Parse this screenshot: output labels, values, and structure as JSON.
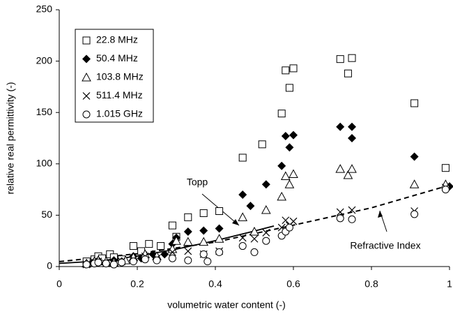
{
  "chart_data": {
    "type": "scatter",
    "xlabel": "volumetric water content (-)",
    "ylabel": "relative real permittivity (-)",
    "xlim": [
      0,
      1
    ],
    "ylim": [
      0,
      250
    ],
    "xticks": [
      0,
      0.2,
      0.4,
      0.6,
      0.8,
      1
    ],
    "yticks": [
      0,
      50,
      100,
      150,
      200,
      250
    ],
    "legend": "upper left",
    "series": [
      {
        "name": "22.8 MHz",
        "marker": "square",
        "color": "#000000",
        "x": [
          0.07,
          0.09,
          0.1,
          0.11,
          0.13,
          0.14,
          0.16,
          0.19,
          0.21,
          0.23,
          0.26,
          0.29,
          0.3,
          0.33,
          0.37,
          0.41,
          0.47,
          0.52,
          0.57,
          0.58,
          0.59,
          0.6,
          0.72,
          0.74,
          0.75,
          0.91,
          0.99
        ],
        "values": [
          5,
          7,
          10,
          8,
          12,
          9,
          7,
          20,
          15,
          22,
          20,
          40,
          29,
          48,
          52,
          54,
          106,
          119,
          149,
          191,
          174,
          193,
          202,
          188,
          203,
          159,
          96
        ]
      },
      {
        "name": "50.4 MHz",
        "marker": "diamond",
        "color": "#000000",
        "x": [
          0.07,
          0.09,
          0.1,
          0.12,
          0.14,
          0.16,
          0.19,
          0.21,
          0.24,
          0.27,
          0.29,
          0.3,
          0.33,
          0.37,
          0.41,
          0.47,
          0.49,
          0.53,
          0.57,
          0.58,
          0.59,
          0.6,
          0.72,
          0.75,
          0.75,
          0.91,
          1.0
        ],
        "values": [
          3,
          5,
          6,
          4,
          6,
          5,
          10,
          8,
          12,
          12,
          22,
          28,
          34,
          35,
          37,
          70,
          59,
          80,
          98,
          127,
          116,
          128,
          136,
          125,
          136,
          107,
          78
        ]
      },
      {
        "name": "103.8 MHz",
        "marker": "triangle",
        "color": "#000000",
        "x": [
          0.07,
          0.09,
          0.1,
          0.12,
          0.14,
          0.17,
          0.19,
          0.22,
          0.25,
          0.29,
          0.3,
          0.33,
          0.37,
          0.41,
          0.47,
          0.5,
          0.53,
          0.57,
          0.58,
          0.59,
          0.6,
          0.72,
          0.74,
          0.75,
          0.91,
          0.99
        ],
        "values": [
          3,
          5,
          6,
          5,
          4,
          6,
          9,
          12,
          10,
          17,
          25,
          24,
          24,
          27,
          48,
          34,
          55,
          68,
          88,
          80,
          90,
          95,
          89,
          95,
          80,
          80
        ]
      },
      {
        "name": "511.4 MHz",
        "marker": "cross",
        "color": "#000000",
        "x": [
          0.07,
          0.09,
          0.1,
          0.12,
          0.14,
          0.16,
          0.19,
          0.22,
          0.25,
          0.29,
          0.33,
          0.37,
          0.41,
          0.47,
          0.5,
          0.53,
          0.57,
          0.58,
          0.59,
          0.6,
          0.72,
          0.75,
          0.91,
          0.99
        ],
        "values": [
          2,
          4,
          5,
          3,
          4,
          5,
          7,
          10,
          8,
          14,
          15,
          12,
          15,
          28,
          27,
          33,
          38,
          45,
          40,
          44,
          53,
          55,
          54,
          77
        ]
      },
      {
        "name": "1.015 GHz",
        "marker": "circle",
        "color": "#000000",
        "x": [
          0.07,
          0.09,
          0.1,
          0.12,
          0.14,
          0.16,
          0.19,
          0.22,
          0.25,
          0.29,
          0.33,
          0.37,
          0.38,
          0.41,
          0.47,
          0.5,
          0.53,
          0.57,
          0.58,
          0.59,
          0.72,
          0.75,
          0.91,
          0.99
        ],
        "values": [
          2,
          3,
          4,
          3,
          2,
          4,
          5,
          7,
          6,
          8,
          6,
          12,
          5,
          14,
          20,
          14,
          25,
          30,
          34,
          38,
          47,
          46,
          51,
          75
        ]
      }
    ],
    "lines": [
      {
        "name": "Topp",
        "style": "solid",
        "color": "#000000",
        "x": [
          0,
          0.1,
          0.2,
          0.3,
          0.4,
          0.5,
          0.55
        ],
        "values": [
          3.03,
          5.34,
          10.1,
          16.9,
          25.2,
          34.6,
          39.5
        ]
      },
      {
        "name": "Refractive Index",
        "style": "dashed",
        "color": "#000000",
        "x": [
          0,
          0.2,
          0.4,
          0.6,
          0.8,
          1.0
        ],
        "values": [
          4.8,
          12.5,
          23.8,
          40.3,
          57.2,
          79.2
        ]
      }
    ]
  }
}
